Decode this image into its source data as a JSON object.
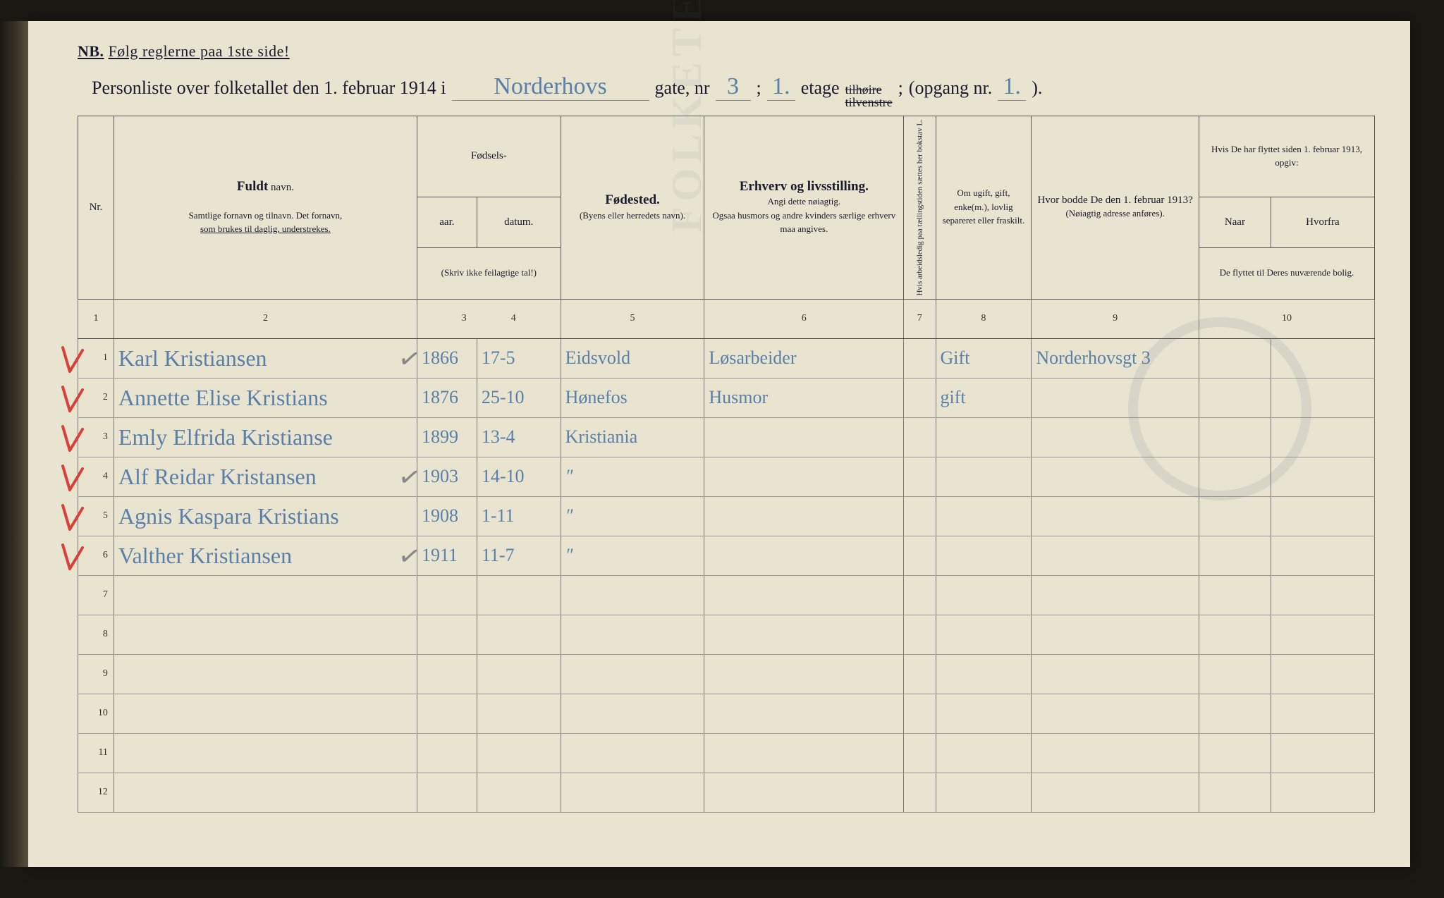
{
  "nb": {
    "label": "NB.",
    "text": "Følg reglerne paa 1ste side!"
  },
  "title": {
    "prefix": "Personliste over folketallet den 1. februar 1914 i",
    "street": "Norderhovs",
    "gate_label": "gate, nr",
    "gate_nr": "3",
    "semicolon": ";",
    "etage_val": "1.",
    "etage_label": "etage",
    "strike_top": "tilhøire",
    "strike_bot": "tilvenstre",
    "opgang_label": "(opgang nr.",
    "opgang_val": "1.",
    "close": ")."
  },
  "colnums": [
    "1",
    "2",
    "3",
    "4",
    "5",
    "6",
    "7",
    "8",
    "9",
    "10"
  ],
  "headers": {
    "nr": "Nr.",
    "name_big": "Fuldt",
    "name_small": "navn.",
    "name_sub1": "Samtlige fornavn og tilnavn.  Det fornavn,",
    "name_sub2": "som brukes til daglig, understrekes.",
    "fodsels": "Fødsels-",
    "aar": "aar.",
    "datum": "datum.",
    "aar_sub": "(Skriv ikke feilagtige tal!)",
    "fodested": "Fødested.",
    "fodested_sub": "(Byens eller herredets navn).",
    "erhverv_big": "Erhverv og livsstilling.",
    "erhverv_sub1": "Angi dette nøiagtig.",
    "erhverv_sub2": "Ogsaa husmors og andre kvinders særlige erhverv maa angives.",
    "col7": "Hvis arbeidsledig paa tællingstiden sættes her bokstav L.",
    "col8": "Om ugift, gift, enke(m.), lovlig separeret eller fraskilt.",
    "col9_big": "Hvor bodde De den 1. februar 1913?",
    "col9_sub": "(Nøiagtig adresse anføres).",
    "col10_top": "Hvis De har flyttet siden 1. februar 1913, opgiv:",
    "col10_naar": "Naar",
    "col10_hvorfra": "Hvorfra",
    "col10_sub": "De flyttet til Deres nuværende bolig."
  },
  "rows": [
    {
      "nr": "1",
      "tick": true,
      "ptick": true,
      "name": "Karl Kristiansen",
      "aar": "1866",
      "datum": "17-5",
      "fodested": "Eidsvold",
      "erhverv": "Løsarbeider",
      "col8": "Gift",
      "col9": "Norderhovsgt 3"
    },
    {
      "nr": "2",
      "tick": true,
      "name": "Annette Elise Kristians",
      "aar": "1876",
      "datum": "25-10",
      "fodested": "Hønefos",
      "erhverv": "Husmor",
      "col8": "gift"
    },
    {
      "nr": "3",
      "tick": true,
      "name": "Emly Elfrida Kristianse",
      "aar": "1899",
      "datum": "13-4",
      "fodested": "Kristiania"
    },
    {
      "nr": "4",
      "tick": true,
      "ptick": true,
      "name": "Alf Reidar Kristansen",
      "aar": "1903",
      "datum": "14-10",
      "fodested_ditto": true
    },
    {
      "nr": "5",
      "tick": true,
      "name": "Agnis Kaspara Kristians",
      "aar": "1908",
      "datum": "1-11",
      "fodested_ditto": true
    },
    {
      "nr": "6",
      "tick": true,
      "ptick": true,
      "name": "Valther Kristiansen",
      "aar": "1911",
      "datum": "11-7",
      "fodested_ditto": true
    },
    {
      "nr": "7"
    },
    {
      "nr": "8"
    },
    {
      "nr": "9"
    },
    {
      "nr": "10"
    },
    {
      "nr": "11"
    },
    {
      "nr": "12"
    }
  ]
}
